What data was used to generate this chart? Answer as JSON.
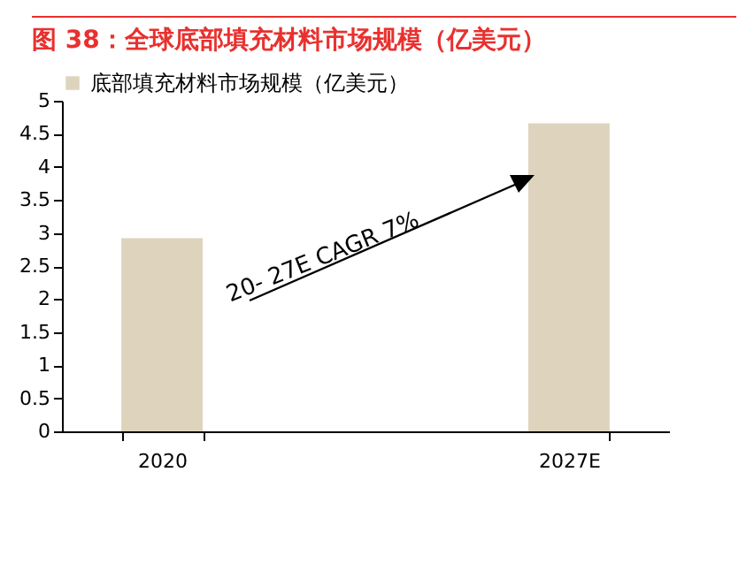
{
  "chart_data": {
    "type": "bar",
    "title": "图 38：全球底部填充材料市场规模（亿美元）",
    "categories": [
      "2020",
      "2027E"
    ],
    "series": [
      {
        "name": "底部填充材料市场规模（亿美元）",
        "color": "#ded4bd",
        "values": [
          2.92,
          4.66
        ]
      }
    ],
    "ylim": [
      0,
      5
    ],
    "yticks": [
      0,
      0.5,
      1,
      1.5,
      2,
      2.5,
      3,
      3.5,
      4,
      4.5,
      5
    ],
    "grid": false,
    "legend": "top",
    "annotations": [
      "20- 27E CAGR 7%"
    ]
  }
}
